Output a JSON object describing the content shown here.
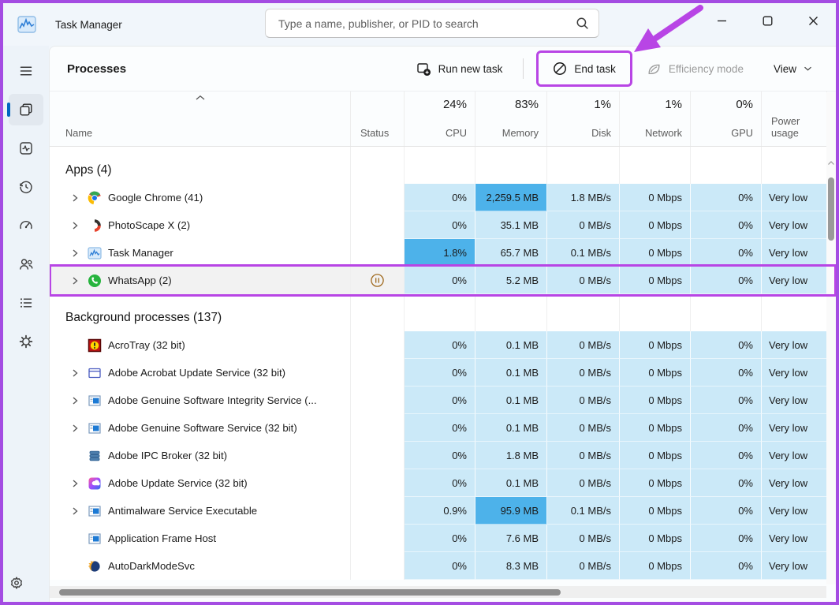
{
  "window": {
    "title": "Task Manager",
    "search_placeholder": "Type a name, publisher, or PID to search"
  },
  "sidebar": {
    "items": [
      {
        "id": "menu",
        "icon": "hamburger-icon",
        "active": false
      },
      {
        "id": "processes",
        "icon": "processes-icon",
        "active": true
      },
      {
        "id": "performance",
        "icon": "performance-icon",
        "active": false
      },
      {
        "id": "app-history",
        "icon": "history-icon",
        "active": false
      },
      {
        "id": "startup-apps",
        "icon": "gauge-icon",
        "active": false
      },
      {
        "id": "users",
        "icon": "users-icon",
        "active": false
      },
      {
        "id": "details",
        "icon": "details-icon",
        "active": false
      },
      {
        "id": "services",
        "icon": "services-icon",
        "active": false
      }
    ],
    "bottom": {
      "id": "settings",
      "icon": "gear-icon"
    }
  },
  "header": {
    "title": "Processes"
  },
  "toolbar": {
    "run_new_task": "Run new task",
    "end_task": "End task",
    "efficiency_mode": "Efficiency mode",
    "view": "View"
  },
  "table": {
    "header": {
      "name": "Name",
      "status": "Status",
      "cpu_pct": "24%",
      "cpu": "CPU",
      "memory_pct": "83%",
      "memory": "Memory",
      "disk_pct": "1%",
      "disk": "Disk",
      "network_pct": "1%",
      "network": "Network",
      "gpu_pct": "0%",
      "gpu": "GPU",
      "power": "Power usage"
    },
    "groups": [
      {
        "label": "Apps (4)",
        "rows": [
          {
            "name": "Google Chrome (41)",
            "icon": "chrome-icon",
            "expand": true,
            "status": "",
            "cpu": "0%",
            "memory": "2,259.5 MB",
            "disk": "1.8 MB/s",
            "network": "0 Mbps",
            "gpu": "0%",
            "power": "Very low",
            "hot": [
              "memory"
            ],
            "selected": false,
            "annotated": false
          },
          {
            "name": "PhotoScape X (2)",
            "icon": "photoscape-icon",
            "expand": true,
            "status": "",
            "cpu": "0%",
            "memory": "35.1 MB",
            "disk": "0 MB/s",
            "network": "0 Mbps",
            "gpu": "0%",
            "power": "Very low",
            "hot": [],
            "selected": false,
            "annotated": false
          },
          {
            "name": "Task Manager",
            "icon": "task-manager-icon",
            "expand": true,
            "status": "",
            "cpu": "1.8%",
            "memory": "65.7 MB",
            "disk": "0.1 MB/s",
            "network": "0 Mbps",
            "gpu": "0%",
            "power": "Very low",
            "hot": [
              "cpu"
            ],
            "selected": false,
            "annotated": false
          },
          {
            "name": "WhatsApp (2)",
            "icon": "whatsapp-icon",
            "expand": true,
            "status": "paused",
            "cpu": "0%",
            "memory": "5.2 MB",
            "disk": "0 MB/s",
            "network": "0 Mbps",
            "gpu": "0%",
            "power": "Very low",
            "hot": [],
            "selected": true,
            "annotated": true
          }
        ]
      },
      {
        "label": "Background processes (137)",
        "rows": [
          {
            "name": "AcroTray (32 bit)",
            "icon": "acrotray-icon",
            "expand": false,
            "status": "",
            "cpu": "0%",
            "memory": "0.1 MB",
            "disk": "0 MB/s",
            "network": "0 Mbps",
            "gpu": "0%",
            "power": "Very low",
            "hot": [],
            "selected": false,
            "annotated": false
          },
          {
            "name": "Adobe Acrobat Update Service (32 bit)",
            "icon": "window-outline-icon",
            "expand": true,
            "status": "",
            "cpu": "0%",
            "memory": "0.1 MB",
            "disk": "0 MB/s",
            "network": "0 Mbps",
            "gpu": "0%",
            "power": "Very low",
            "hot": [],
            "selected": false,
            "annotated": false
          },
          {
            "name": "Adobe Genuine Software Integrity Service (...",
            "icon": "window-blue-icon",
            "expand": true,
            "status": "",
            "cpu": "0%",
            "memory": "0.1 MB",
            "disk": "0 MB/s",
            "network": "0 Mbps",
            "gpu": "0%",
            "power": "Very low",
            "hot": [],
            "selected": false,
            "annotated": false
          },
          {
            "name": "Adobe Genuine Software Service (32 bit)",
            "icon": "window-blue-icon",
            "expand": true,
            "status": "",
            "cpu": "0%",
            "memory": "0.1 MB",
            "disk": "0 MB/s",
            "network": "0 Mbps",
            "gpu": "0%",
            "power": "Very low",
            "hot": [],
            "selected": false,
            "annotated": false
          },
          {
            "name": "Adobe IPC Broker (32 bit)",
            "icon": "layers-icon",
            "expand": false,
            "status": "",
            "cpu": "0%",
            "memory": "1.8 MB",
            "disk": "0 MB/s",
            "network": "0 Mbps",
            "gpu": "0%",
            "power": "Very low",
            "hot": [],
            "selected": false,
            "annotated": false
          },
          {
            "name": "Adobe Update Service (32 bit)",
            "icon": "creative-cloud-icon",
            "expand": true,
            "status": "",
            "cpu": "0%",
            "memory": "0.1 MB",
            "disk": "0 MB/s",
            "network": "0 Mbps",
            "gpu": "0%",
            "power": "Very low",
            "hot": [],
            "selected": false,
            "annotated": false
          },
          {
            "name": "Antimalware Service Executable",
            "icon": "window-blue-icon",
            "expand": true,
            "status": "",
            "cpu": "0.9%",
            "memory": "95.9 MB",
            "disk": "0.1 MB/s",
            "network": "0 Mbps",
            "gpu": "0%",
            "power": "Very low",
            "hot": [
              "memory"
            ],
            "selected": false,
            "annotated": false
          },
          {
            "name": "Application Frame Host",
            "icon": "window-blue-icon",
            "expand": false,
            "status": "",
            "cpu": "0%",
            "memory": "7.6 MB",
            "disk": "0 MB/s",
            "network": "0 Mbps",
            "gpu": "0%",
            "power": "Very low",
            "hot": [],
            "selected": false,
            "annotated": false
          },
          {
            "name": "AutoDarkModeSvc",
            "icon": "dark-mode-icon",
            "expand": false,
            "status": "",
            "cpu": "0%",
            "memory": "8.3 MB",
            "disk": "0 MB/s",
            "network": "0 Mbps",
            "gpu": "0%",
            "power": "Very low",
            "hot": [],
            "selected": false,
            "annotated": false
          }
        ]
      }
    ]
  },
  "colors": {
    "annotation_purple": "#b845e5",
    "heatmap_light": "#cbe9f8",
    "heatmap_strong": "#4db2ea",
    "accent_blue": "#0067c0"
  }
}
